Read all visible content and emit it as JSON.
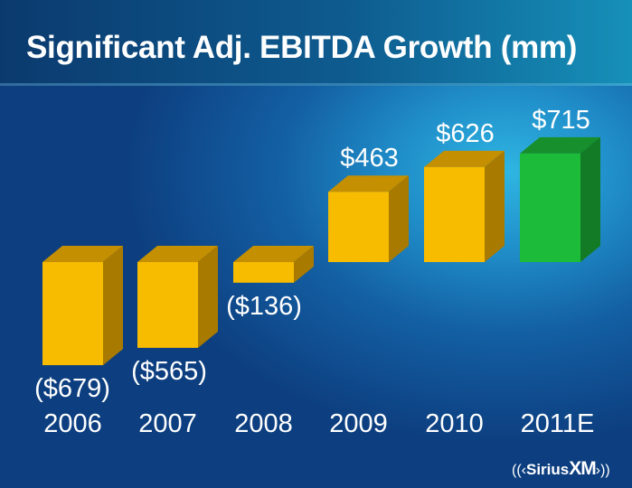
{
  "header": {
    "title": "Significant Adj. EBITDA Growth (mm)"
  },
  "logo": {
    "wave_left": "((‹",
    "text": "Sirius",
    "xm": "XM",
    "wave_right": "›))"
  },
  "colors": {
    "bar": "#f7bb00",
    "bar_top": "#c48f00",
    "bar_side": "#a87a00",
    "highlight": "#1dbb3a",
    "highlight_top": "#178f2c",
    "highlight_side": "#137a25"
  },
  "chart_data": {
    "type": "bar",
    "title": "Significant Adj. EBITDA Growth (mm)",
    "xlabel": "",
    "ylabel": "",
    "categories": [
      "2006",
      "2007",
      "2008",
      "2009",
      "2010",
      "2011E"
    ],
    "values": [
      -679,
      -565,
      -136,
      463,
      626,
      715
    ],
    "data_labels": [
      "($679)",
      "($565)",
      "($136)",
      "$463",
      "$626",
      "$715"
    ],
    "highlighted": [
      "2011E"
    ],
    "style": "3d",
    "grid": false,
    "legend": "none"
  }
}
